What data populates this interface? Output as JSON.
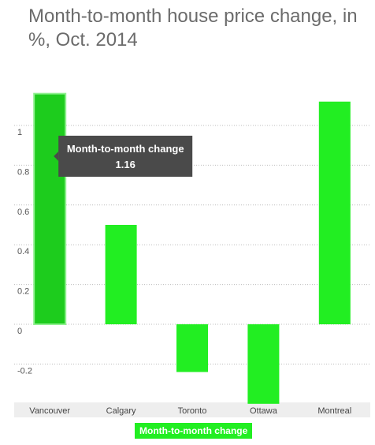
{
  "chart_data": {
    "type": "bar",
    "title": "Month-to-month house price change, in %, Oct. 2014",
    "xlabel": "",
    "ylabel": "",
    "categories": [
      "Vancouver",
      "Calgary",
      "Toronto",
      "Ottawa",
      "Montreal"
    ],
    "series": [
      {
        "name": "Month-to-month change",
        "values": [
          1.16,
          0.5,
          -0.24,
          -0.4,
          1.12
        ]
      }
    ],
    "ylim": [
      -0.4,
      1.2
    ],
    "yticks": [
      -0.2,
      0,
      0.2,
      0.4,
      0.6,
      0.8,
      1
    ],
    "ytick_labels": [
      "-0.2",
      "0",
      "0.2",
      "0.4",
      "0.6",
      "0.8",
      "1"
    ],
    "grid": true,
    "legend": "bottom-center",
    "colors": {
      "bar": "#22ee22",
      "bar_highlight": "#1dcc1d",
      "tooltip_bg": "#4a4a4a"
    },
    "tooltip": {
      "category": "Vancouver",
      "label": "Month-to-month change",
      "value": "1.16"
    }
  }
}
